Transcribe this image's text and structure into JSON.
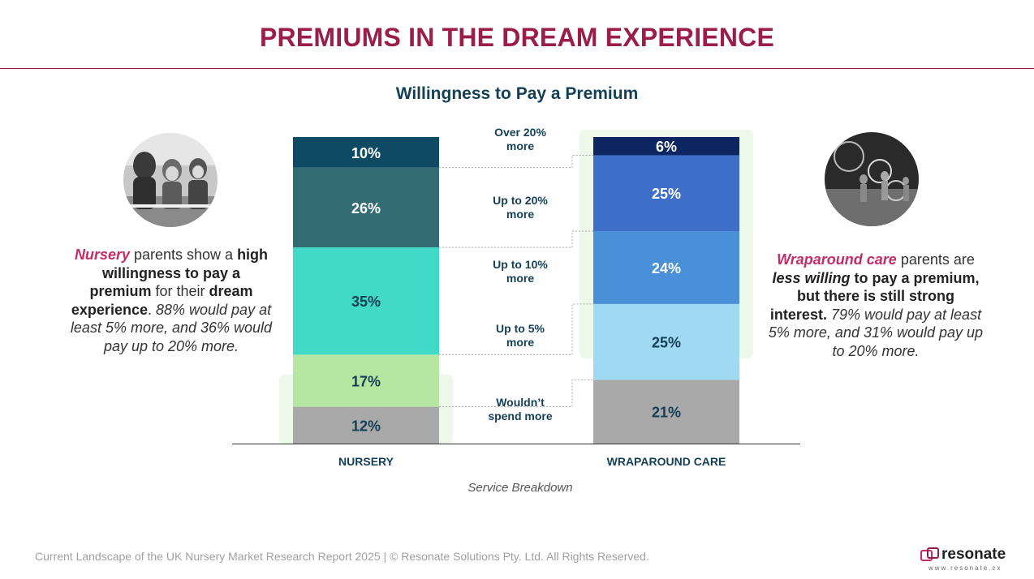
{
  "page_title": "PREMIUMS IN THE DREAM EXPERIENCE",
  "left_panel": {
    "photo": "children-playing-photo",
    "parts": [
      {
        "text": "Nursery",
        "style": "highlight"
      },
      {
        "text": " parents show a ",
        "style": "normal"
      },
      {
        "text": "high willingness to pay a premium",
        "style": "bold"
      },
      {
        "text": " for their ",
        "style": "normal"
      },
      {
        "text": "dream experience",
        "style": "bold"
      },
      {
        "text": ". ",
        "style": "normal"
      },
      {
        "text": "88% would pay at least 5% more, and 36% would pay up to 20% more.",
        "style": "italic"
      }
    ]
  },
  "right_panel": {
    "photo": "kids-hula-hoop-photo",
    "parts": [
      {
        "text": "Wraparound care",
        "style": "highlight"
      },
      {
        "text": " parents are ",
        "style": "normal"
      },
      {
        "text": "less willing",
        "style": "bold-italic"
      },
      {
        "text": " to pay a premium",
        "style": "bold"
      },
      {
        "text": ", but there is still strong interest.",
        "style": "bold"
      },
      {
        "text": " 79% would pay at least 5% more, and 31% would pay up to 20% more.",
        "style": "italic"
      }
    ]
  },
  "chart_data": {
    "type": "bar",
    "stacked": true,
    "title": "Willingness to Pay a Premium",
    "xlabel": "Service Breakdown",
    "ylabel": "",
    "ylim": [
      0,
      100
    ],
    "categories": [
      "NURSERY",
      "WRAPAROUND CARE"
    ],
    "series": [
      {
        "name": "Wouldn't spend more",
        "label": "Wouldn’t spend more",
        "values": [
          12,
          21
        ],
        "colors": [
          "#a9a9a9",
          "#a9a9a9"
        ],
        "text_colors": [
          "#143f55",
          "#143f55"
        ]
      },
      {
        "name": "Up to 5% more",
        "label": "Up to 5% more",
        "values": [
          17,
          25
        ],
        "colors": [
          "#b5e6a2",
          "#9fd9f2"
        ],
        "text_colors": [
          "#143f55",
          "#143f55"
        ]
      },
      {
        "name": "Up to 10% more",
        "label": "Up to 10% more",
        "values": [
          35,
          24
        ],
        "colors": [
          "#41d9c8",
          "#4a90d9"
        ],
        "text_colors": [
          "#143f55",
          "#ffffff"
        ]
      },
      {
        "name": "Up to 20% more",
        "label": "Up to 20% more",
        "values": [
          26,
          25
        ],
        "colors": [
          "#336c72",
          "#3d6fc9"
        ],
        "text_colors": [
          "#ffffff",
          "#ffffff"
        ]
      },
      {
        "name": "Over 20% more",
        "label": "Over 20% more",
        "values": [
          10,
          6
        ],
        "colors": [
          "#0e4a63",
          "#0d2561"
        ],
        "text_colors": [
          "#ffffff",
          "#ffffff"
        ]
      }
    ],
    "data_labels": [
      [
        "12%",
        "17%",
        "35%",
        "26%",
        "10%"
      ],
      [
        "21%",
        "25%",
        "24%",
        "25%",
        "6%"
      ]
    ]
  },
  "footer": "Current Landscape of the UK Nursery Market Research Report 2025 | © Resonate Solutions Pty. Ltd. All Rights Reserved.",
  "logo": {
    "name": "resonate",
    "url": "www.resonate.cx"
  },
  "colors": {
    "brand": "#9b1d4a",
    "accent": "#c22c68",
    "heading": "#143f55"
  }
}
